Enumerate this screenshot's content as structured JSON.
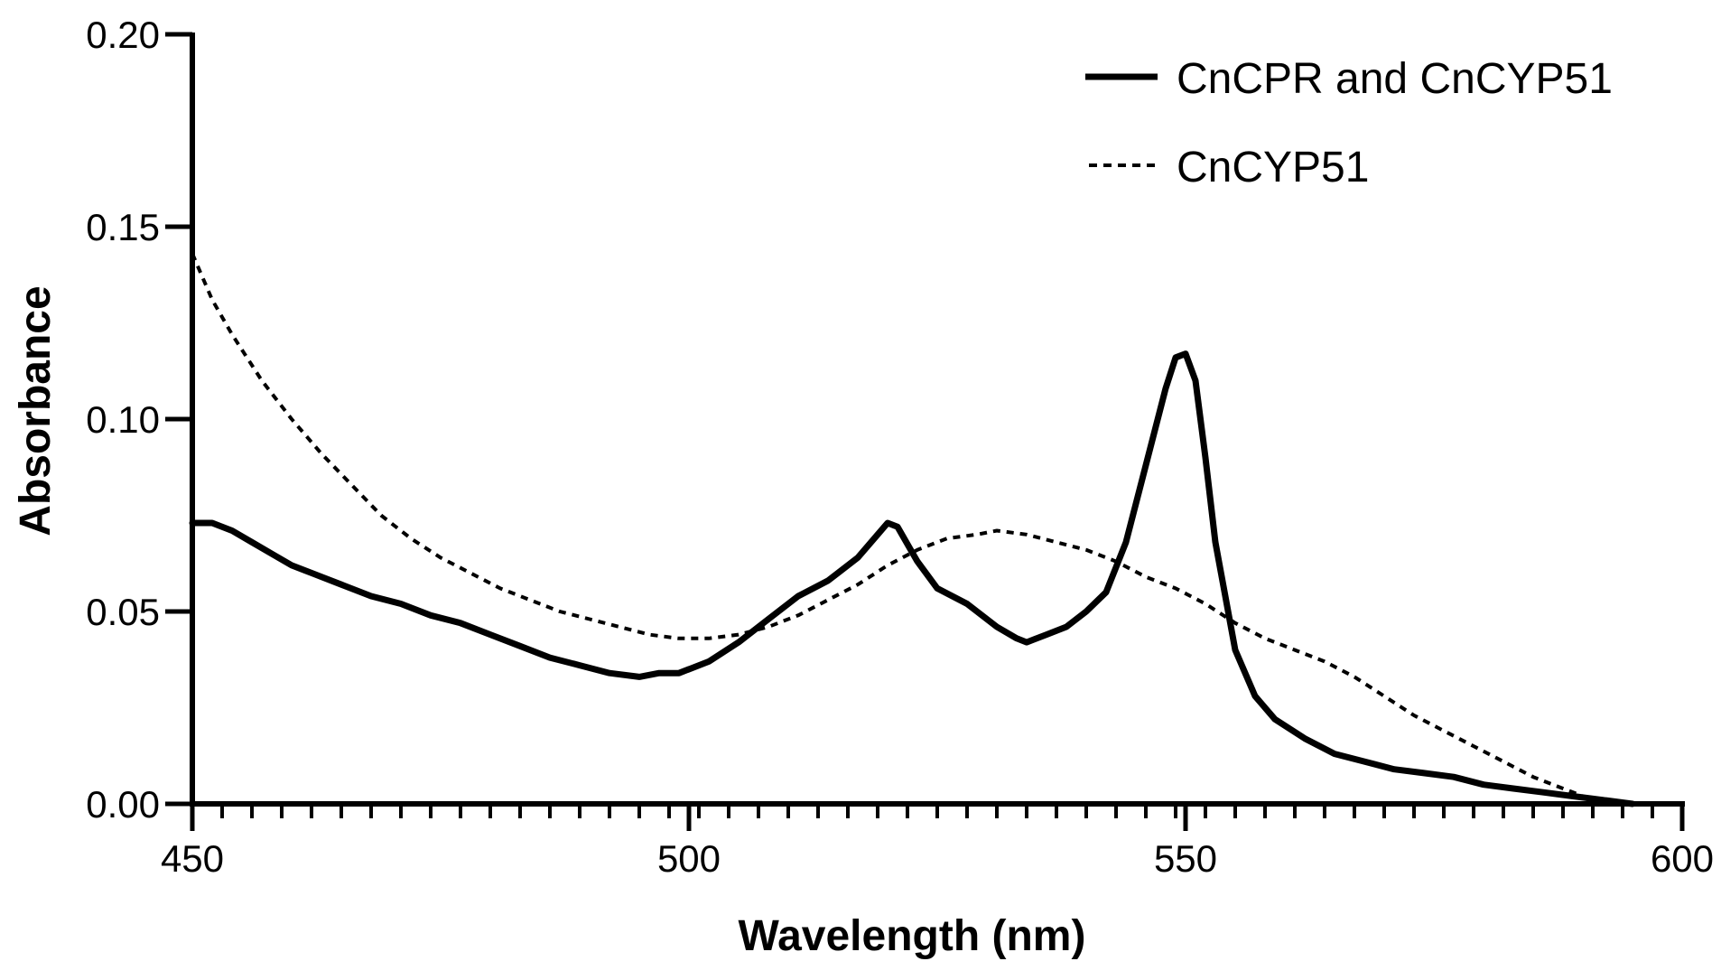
{
  "chart_data": {
    "type": "line",
    "title": "",
    "xlabel": "Wavelength (nm)",
    "ylabel": "Absorbance",
    "xlim": [
      450,
      600
    ],
    "ylim": [
      0.0,
      0.2
    ],
    "xticks": [
      450,
      500,
      550,
      600
    ],
    "xtick_labels": [
      "450",
      "500",
      "550",
      "600"
    ],
    "x_minor_step": 3,
    "yticks": [
      0.0,
      0.05,
      0.1,
      0.15,
      0.2
    ],
    "ytick_labels": [
      "0.00",
      "0.05",
      "0.10",
      "0.15",
      "0.20"
    ],
    "grid": false,
    "legend_position": "top-right",
    "series": [
      {
        "name": "CnCPR and CnCYP51",
        "style": "solid",
        "color": "#000000",
        "x": [
          450,
          452,
          454,
          456,
          458,
          460,
          462,
          465,
          468,
          471,
          474,
          477,
          480,
          483,
          486,
          489,
          492,
          495,
          497,
          499,
          502,
          505,
          508,
          511,
          514,
          517,
          519,
          520,
          521,
          523,
          525,
          528,
          531,
          533,
          534,
          536,
          538,
          540,
          542,
          544,
          546,
          548,
          549,
          550,
          551,
          552,
          553,
          555,
          557,
          559,
          562,
          565,
          568,
          571,
          574,
          577,
          580,
          583,
          586,
          589,
          592,
          595
        ],
        "y": [
          0.073,
          0.073,
          0.071,
          0.068,
          0.065,
          0.062,
          0.06,
          0.057,
          0.054,
          0.052,
          0.049,
          0.047,
          0.044,
          0.041,
          0.038,
          0.036,
          0.034,
          0.033,
          0.034,
          0.034,
          0.037,
          0.042,
          0.048,
          0.054,
          0.058,
          0.064,
          0.07,
          0.073,
          0.072,
          0.063,
          0.056,
          0.052,
          0.046,
          0.043,
          0.042,
          0.044,
          0.046,
          0.05,
          0.055,
          0.068,
          0.088,
          0.108,
          0.116,
          0.117,
          0.11,
          0.09,
          0.068,
          0.04,
          0.028,
          0.022,
          0.017,
          0.013,
          0.011,
          0.009,
          0.008,
          0.007,
          0.005,
          0.004,
          0.003,
          0.002,
          0.001,
          0.0
        ]
      },
      {
        "name": "CnCYP51",
        "style": "dashed",
        "color": "#000000",
        "x": [
          450,
          452,
          454,
          457,
          460,
          463,
          466,
          469,
          472,
          475,
          478,
          481,
          484,
          487,
          490,
          493,
          496,
          499,
          502,
          505,
          508,
          511,
          514,
          517,
          520,
          523,
          526,
          529,
          531,
          534,
          537,
          540,
          543,
          546,
          549,
          552,
          555,
          558,
          561,
          564,
          567,
          570,
          573,
          576,
          579,
          582,
          585,
          588,
          591,
          594
        ],
        "y": [
          0.143,
          0.131,
          0.122,
          0.11,
          0.1,
          0.091,
          0.083,
          0.075,
          0.069,
          0.064,
          0.06,
          0.056,
          0.053,
          0.05,
          0.048,
          0.046,
          0.044,
          0.043,
          0.043,
          0.044,
          0.046,
          0.049,
          0.053,
          0.057,
          0.062,
          0.066,
          0.069,
          0.07,
          0.071,
          0.07,
          0.068,
          0.066,
          0.063,
          0.059,
          0.056,
          0.052,
          0.047,
          0.043,
          0.04,
          0.037,
          0.033,
          0.028,
          0.023,
          0.019,
          0.015,
          0.011,
          0.007,
          0.004,
          0.001,
          0.0
        ]
      }
    ]
  }
}
